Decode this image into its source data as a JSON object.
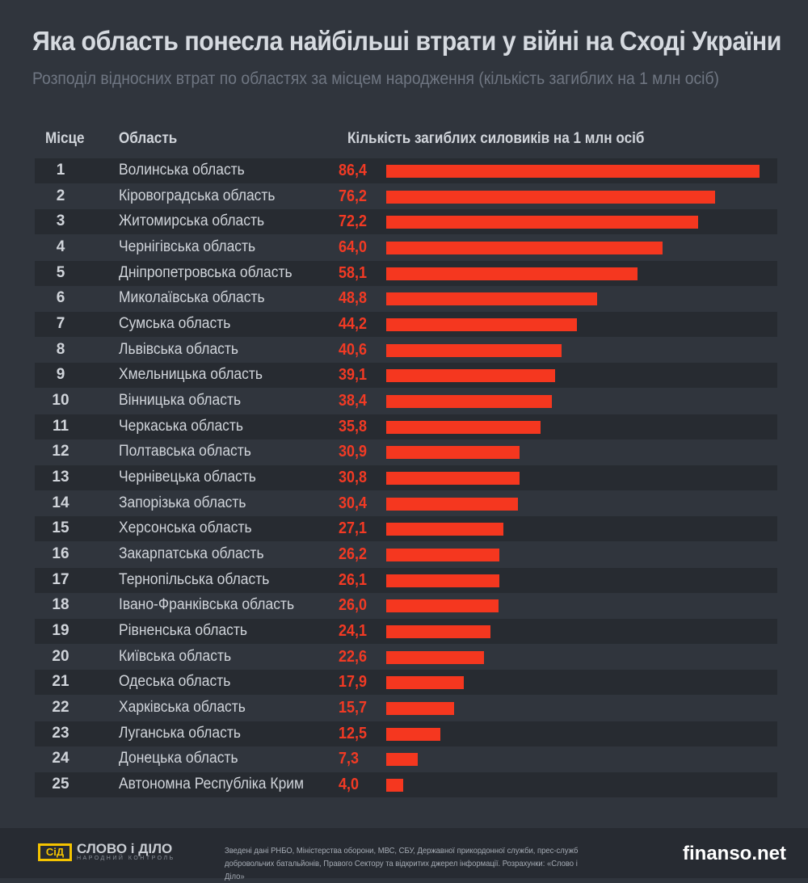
{
  "title": "Яка область понесла найбільші втрати у війні на Сході України",
  "subtitle": "Розподіл відносних втрат по областях за місцем народження (кількість загиблих на 1 млн осіб)",
  "headers": {
    "rank": "Місце",
    "region": "Область",
    "value": "Кількість загиблих силовиків на 1 млн осіб"
  },
  "colors": {
    "bar": "#f5371f",
    "value_text": "#f23a24",
    "background": "#30353d",
    "alt_row": "#272b31"
  },
  "chart_data": {
    "type": "bar",
    "orientation": "horizontal",
    "title": "Яка область понесла найбільші втрати у війні на Сході України",
    "subtitle": "Розподіл відносних втрат по областях за місцем народження (кількість загиблих на 1 млн осіб)",
    "xlabel": "Кількість загиблих силовиків на 1 млн осіб",
    "xlim": [
      0,
      86.4
    ],
    "grid": false,
    "categories": [
      "Волинська область",
      "Кіровоградська область",
      "Житомирська область",
      "Чернігівська область",
      "Дніпропетровська область",
      "Миколаївська область",
      "Сумська область",
      "Львівська область",
      "Хмельницька область",
      "Вінницька область",
      "Черкаська область",
      "Полтавська область",
      "Чернівецька область",
      "Запорізька область",
      "Херсонська область",
      "Закарпатська область",
      "Тернопільська область",
      "Івано-Франківська область",
      "Рівненська область",
      "Київська область",
      "Одеська область",
      "Харківська область",
      "Луганська область",
      "Донецька область",
      "Автономна Республіка Крим"
    ],
    "values": [
      86.4,
      76.2,
      72.2,
      64.0,
      58.1,
      48.8,
      44.2,
      40.6,
      39.1,
      38.4,
      35.8,
      30.9,
      30.8,
      30.4,
      27.1,
      26.2,
      26.1,
      26.0,
      24.1,
      22.6,
      17.9,
      15.7,
      12.5,
      7.3,
      4.0
    ],
    "labels": [
      "86,4",
      "76,2",
      "72,2",
      "64,0",
      "58,1",
      "48,8",
      "44,2",
      "40,6",
      "39,1",
      "38,4",
      "35,8",
      "30,9",
      "30,8",
      "30,4",
      "27,1",
      "26,2",
      "26,1",
      "26,0",
      "24,1",
      "22,6",
      "17,9",
      "15,7",
      "12,5",
      "7,3",
      "4,0"
    ],
    "ranks": [
      "1",
      "2",
      "3",
      "4",
      "5",
      "6",
      "7",
      "8",
      "9",
      "10",
      "11",
      "12",
      "13",
      "14",
      "15",
      "16",
      "17",
      "18",
      "19",
      "20",
      "21",
      "22",
      "23",
      "24",
      "25"
    ]
  },
  "footer": {
    "logo_mark": "СіД",
    "logo_name": "СЛОВО і ДІЛО",
    "logo_tagline": "НАРОДНИЙ КОНТРОЛЬ",
    "sources": "Зведені дані  РНБО, Міністерства оборони, МВС, СБУ, Державної прикордонної служби, прес-служб добровольчих батальйонів, Правого Сектору та відкритих джерел інформації.  Розрахунки: «Слово і Діло»",
    "watermark": "finanso.net"
  }
}
